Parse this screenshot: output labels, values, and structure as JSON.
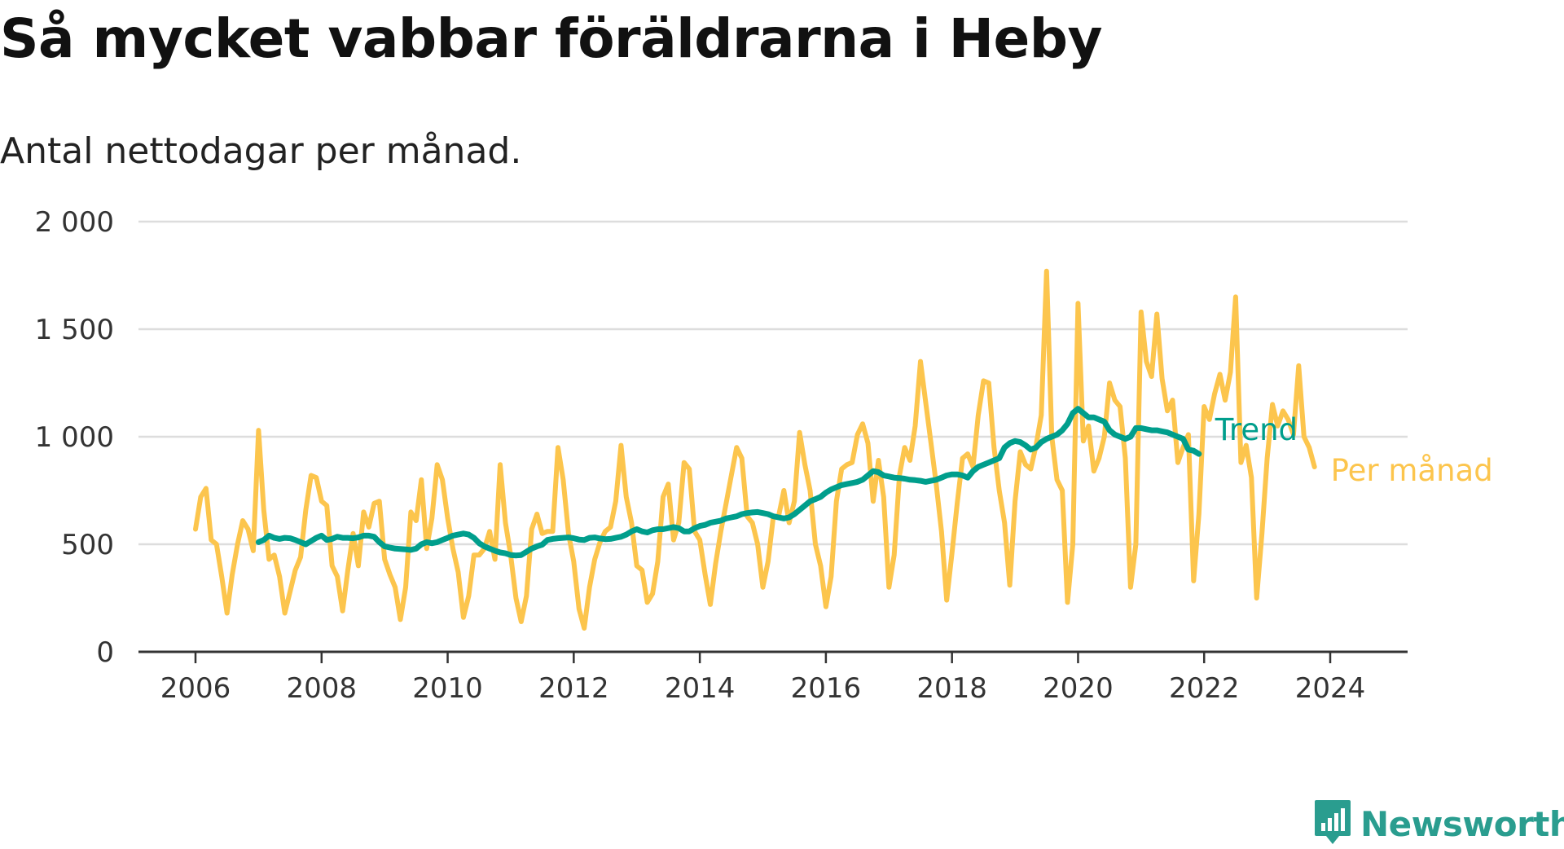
{
  "title": "Så mycket vabbar föräldrarna i Heby",
  "subtitle": "Antal nettodagar per månad.",
  "brand": {
    "name": "Newsworthy",
    "icon": "bar-chart-badge-icon",
    "color": "#2a9d8f"
  },
  "colors": {
    "trend": "#009e8c",
    "monthly": "#fcc54d",
    "grid": "#dddddd",
    "axis": "#333333"
  },
  "chart_data": {
    "type": "line",
    "title": "Så mycket vabbar föräldrarna i Heby",
    "subtitle": "Antal nettodagar per månad.",
    "xlabel": "",
    "ylabel": "",
    "ylim": [
      0,
      2000
    ],
    "yticks": [
      0,
      500,
      1000,
      1500,
      2000
    ],
    "ytick_labels": [
      "0",
      "500",
      "1 000",
      "1 500",
      "2 000"
    ],
    "xlim": [
      2006.0,
      2024.6
    ],
    "xticks": [
      2006,
      2008,
      2010,
      2012,
      2014,
      2016,
      2018,
      2020,
      2022,
      2024
    ],
    "xtick_labels": [
      "2006",
      "2008",
      "2010",
      "2012",
      "2014",
      "2016",
      "2018",
      "2020",
      "2022",
      "2024"
    ],
    "grid": true,
    "legend": "end-of-line labels",
    "series": [
      {
        "name": "Per månad",
        "color": "#fcc54d",
        "start": "2006-01",
        "values": [
          570,
          720,
          760,
          520,
          500,
          350,
          180,
          360,
          500,
          610,
          570,
          470,
          1030,
          660,
          430,
          450,
          350,
          180,
          280,
          380,
          440,
          660,
          820,
          810,
          700,
          680,
          400,
          350,
          190,
          380,
          550,
          400,
          650,
          580,
          690,
          700,
          430,
          360,
          300,
          150,
          300,
          650,
          610,
          800,
          480,
          620,
          870,
          800,
          620,
          480,
          370,
          160,
          260,
          450,
          450,
          480,
          560,
          430,
          870,
          600,
          450,
          250,
          140,
          260,
          570,
          640,
          550,
          560,
          560,
          950,
          800,
          550,
          420,
          200,
          110,
          300,
          430,
          510,
          560,
          580,
          700,
          960,
          720,
          600,
          400,
          380,
          230,
          270,
          420,
          720,
          780,
          520,
          600,
          880,
          850,
          560,
          520,
          360,
          220,
          410,
          560,
          690,
          820,
          950,
          900,
          630,
          600,
          500,
          300,
          420,
          630,
          630,
          750,
          600,
          700,
          1020,
          870,
          750,
          500,
          400,
          210,
          350,
          700,
          850,
          870,
          880,
          1010,
          1060,
          970,
          700,
          890,
          720,
          300,
          450,
          820,
          950,
          890,
          1050,
          1350,
          1160,
          970,
          780,
          560,
          240,
          460,
          690,
          900,
          920,
          860,
          1100,
          1260,
          1250,
          950,
          750,
          600,
          310,
          700,
          930,
          870,
          850,
          960,
          1100,
          1770,
          1000,
          800,
          750,
          230,
          500,
          1620,
          980,
          1050,
          840,
          900,
          1000,
          1250,
          1170,
          1140,
          900,
          300,
          500,
          1580,
          1350,
          1280,
          1570,
          1270,
          1120,
          1170,
          880,
          950,
          1010,
          330,
          640,
          1140,
          1080,
          1200,
          1290,
          1170,
          1300,
          1650,
          880,
          960,
          810,
          250,
          550,
          900,
          1150,
          1050,
          1120,
          1080,
          1010,
          1330,
          1000,
          950,
          860
        ]
      },
      {
        "name": "Trend",
        "color": "#009e8c",
        "start": "2007-01",
        "values": [
          510,
          520,
          540,
          530,
          525,
          530,
          528,
          520,
          510,
          500,
          515,
          530,
          540,
          520,
          525,
          535,
          530,
          530,
          528,
          532,
          540,
          540,
          535,
          510,
          490,
          485,
          480,
          478,
          476,
          474,
          480,
          500,
          510,
          505,
          510,
          520,
          530,
          540,
          545,
          550,
          545,
          530,
          505,
          490,
          480,
          470,
          462,
          458,
          450,
          448,
          450,
          465,
          480,
          490,
          498,
          520,
          525,
          528,
          530,
          532,
          528,
          522,
          520,
          530,
          532,
          527,
          524,
          525,
          530,
          535,
          545,
          560,
          570,
          560,
          555,
          565,
          570,
          570,
          575,
          580,
          575,
          560,
          560,
          575,
          585,
          590,
          600,
          605,
          610,
          620,
          625,
          630,
          640,
          645,
          648,
          650,
          645,
          640,
          630,
          625,
          620,
          625,
          640,
          660,
          680,
          700,
          710,
          720,
          740,
          755,
          765,
          775,
          780,
          785,
          790,
          800,
          820,
          840,
          835,
          820,
          815,
          810,
          808,
          805,
          800,
          798,
          795,
          790,
          795,
          800,
          810,
          820,
          825,
          825,
          820,
          810,
          840,
          860,
          870,
          880,
          890,
          900,
          950,
          970,
          980,
          975,
          960,
          940,
          950,
          975,
          990,
          1000,
          1010,
          1030,
          1060,
          1110,
          1130,
          1110,
          1090,
          1090,
          1080,
          1070,
          1030,
          1010,
          1000,
          990,
          1000,
          1040,
          1040,
          1035,
          1030,
          1030,
          1025,
          1020,
          1010,
          1000,
          990,
          940,
          935,
          920
        ]
      }
    ]
  }
}
